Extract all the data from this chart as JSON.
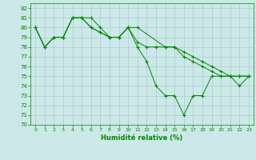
{
  "title": "",
  "xlabel": "Humidité relative (%)",
  "ylabel": "",
  "bg_color": "#cce8e8",
  "grid_color": "#aacccc",
  "line_color": "#008800",
  "xlim": [
    -0.5,
    23.5
  ],
  "ylim": [
    70,
    82.5
  ],
  "yticks": [
    70,
    71,
    72,
    73,
    74,
    75,
    76,
    77,
    78,
    79,
    80,
    81,
    82
  ],
  "xticks": [
    0,
    1,
    2,
    3,
    4,
    5,
    6,
    7,
    8,
    9,
    10,
    11,
    12,
    13,
    14,
    15,
    16,
    17,
    18,
    19,
    20,
    21,
    22,
    23
  ],
  "series": [
    {
      "x": [
        0,
        1,
        2,
        3,
        4,
        5,
        6,
        7,
        8,
        9,
        10,
        11,
        12,
        13,
        14,
        15,
        16,
        17,
        18,
        19,
        20,
        21,
        22,
        23
      ],
      "y": [
        80,
        78,
        79,
        79,
        81,
        81,
        81,
        80,
        79,
        79,
        80,
        78,
        76.5,
        74,
        73,
        73,
        71,
        73,
        73,
        75,
        75,
        75,
        74,
        75
      ]
    },
    {
      "x": [
        0,
        1,
        2,
        3,
        4,
        5,
        6,
        7,
        8,
        9,
        10,
        11,
        12,
        13,
        14,
        15,
        16,
        17,
        18,
        19,
        20,
        21,
        22,
        23
      ],
      "y": [
        80,
        78,
        79,
        79,
        81,
        81,
        80,
        79.5,
        79,
        79,
        80,
        78.5,
        78,
        78,
        78,
        78,
        77,
        76.5,
        76,
        75.5,
        75,
        75,
        75,
        75
      ]
    },
    {
      "x": [
        0,
        1,
        2,
        3,
        4,
        5,
        6,
        7,
        8,
        9,
        10,
        11,
        14,
        15,
        16,
        17,
        18,
        19,
        20,
        21,
        22,
        23
      ],
      "y": [
        80,
        78,
        79,
        79,
        81,
        81,
        80,
        79.5,
        79,
        79,
        80,
        80,
        78,
        78,
        77.5,
        77,
        76.5,
        76,
        75.5,
        75,
        75,
        75
      ]
    }
  ]
}
